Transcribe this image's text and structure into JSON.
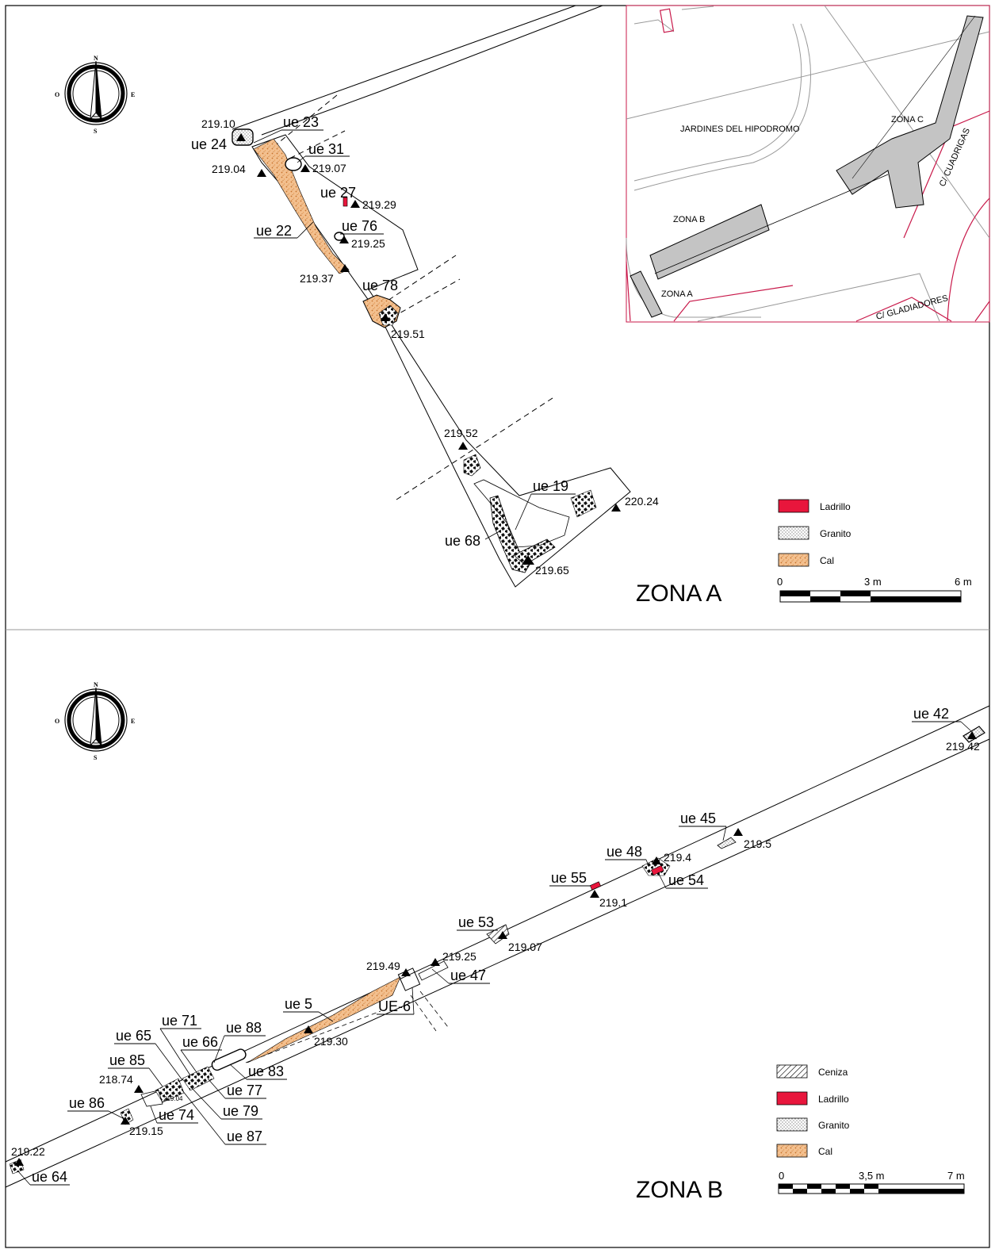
{
  "compass": {
    "n": "N",
    "s": "S",
    "e": "E",
    "w": "O"
  },
  "zone_a": {
    "title": "ZONA A",
    "labels": [
      "ue 24",
      "ue 23",
      "ue 31",
      "ue 27",
      "ue 22",
      "ue 76",
      "ue 78",
      "ue 19",
      "ue 68"
    ],
    "elevations": [
      "219.10",
      "219.04",
      "219.07",
      "219.29",
      "219.25",
      "219.37",
      "219.51",
      "219.52",
      "220.24",
      "219.65"
    ],
    "legend": [
      {
        "label": "Ladrillo",
        "color": "#e8163c"
      },
      {
        "label": "Granito",
        "color": "#dddddd"
      },
      {
        "label": "Cal",
        "color": "#f3b985"
      }
    ],
    "scale": [
      "0",
      "3 m",
      "6 m"
    ]
  },
  "location_map": {
    "labels": [
      "JARDINES DEL HIPODROMO",
      "ZONA C",
      "ZONA B",
      "ZONA A",
      "C/ CUADRIGAS",
      "C/ GLADIADORES"
    ]
  },
  "zone_b": {
    "title": "ZONA B",
    "labels": [
      "ue 42",
      "ue 45",
      "ue 48",
      "ue 54",
      "ue 55",
      "ue 53",
      "ue 47",
      "UE-6",
      "ue 5",
      "ue 88",
      "ue 71",
      "ue 66",
      "ue 65",
      "ue 85",
      "ue 83",
      "ue 77",
      "ue 79",
      "ue 74",
      "ue 86",
      "ue 87",
      "ue 64"
    ],
    "elevations": [
      "219.42",
      "219.5",
      "219.4",
      "219.1",
      "219.07",
      "219.25",
      "219.49",
      "219.30",
      "218.74",
      "219.04",
      "219.15",
      "219.22"
    ],
    "legend": [
      {
        "label": "Ceniza",
        "color": "#ffffff"
      },
      {
        "label": "Ladrillo",
        "color": "#e8163c"
      },
      {
        "label": "Granito",
        "color": "#dddddd"
      },
      {
        "label": "Cal",
        "color": "#f3b985"
      }
    ],
    "scale": [
      "0",
      "3,5 m",
      "7 m"
    ]
  }
}
